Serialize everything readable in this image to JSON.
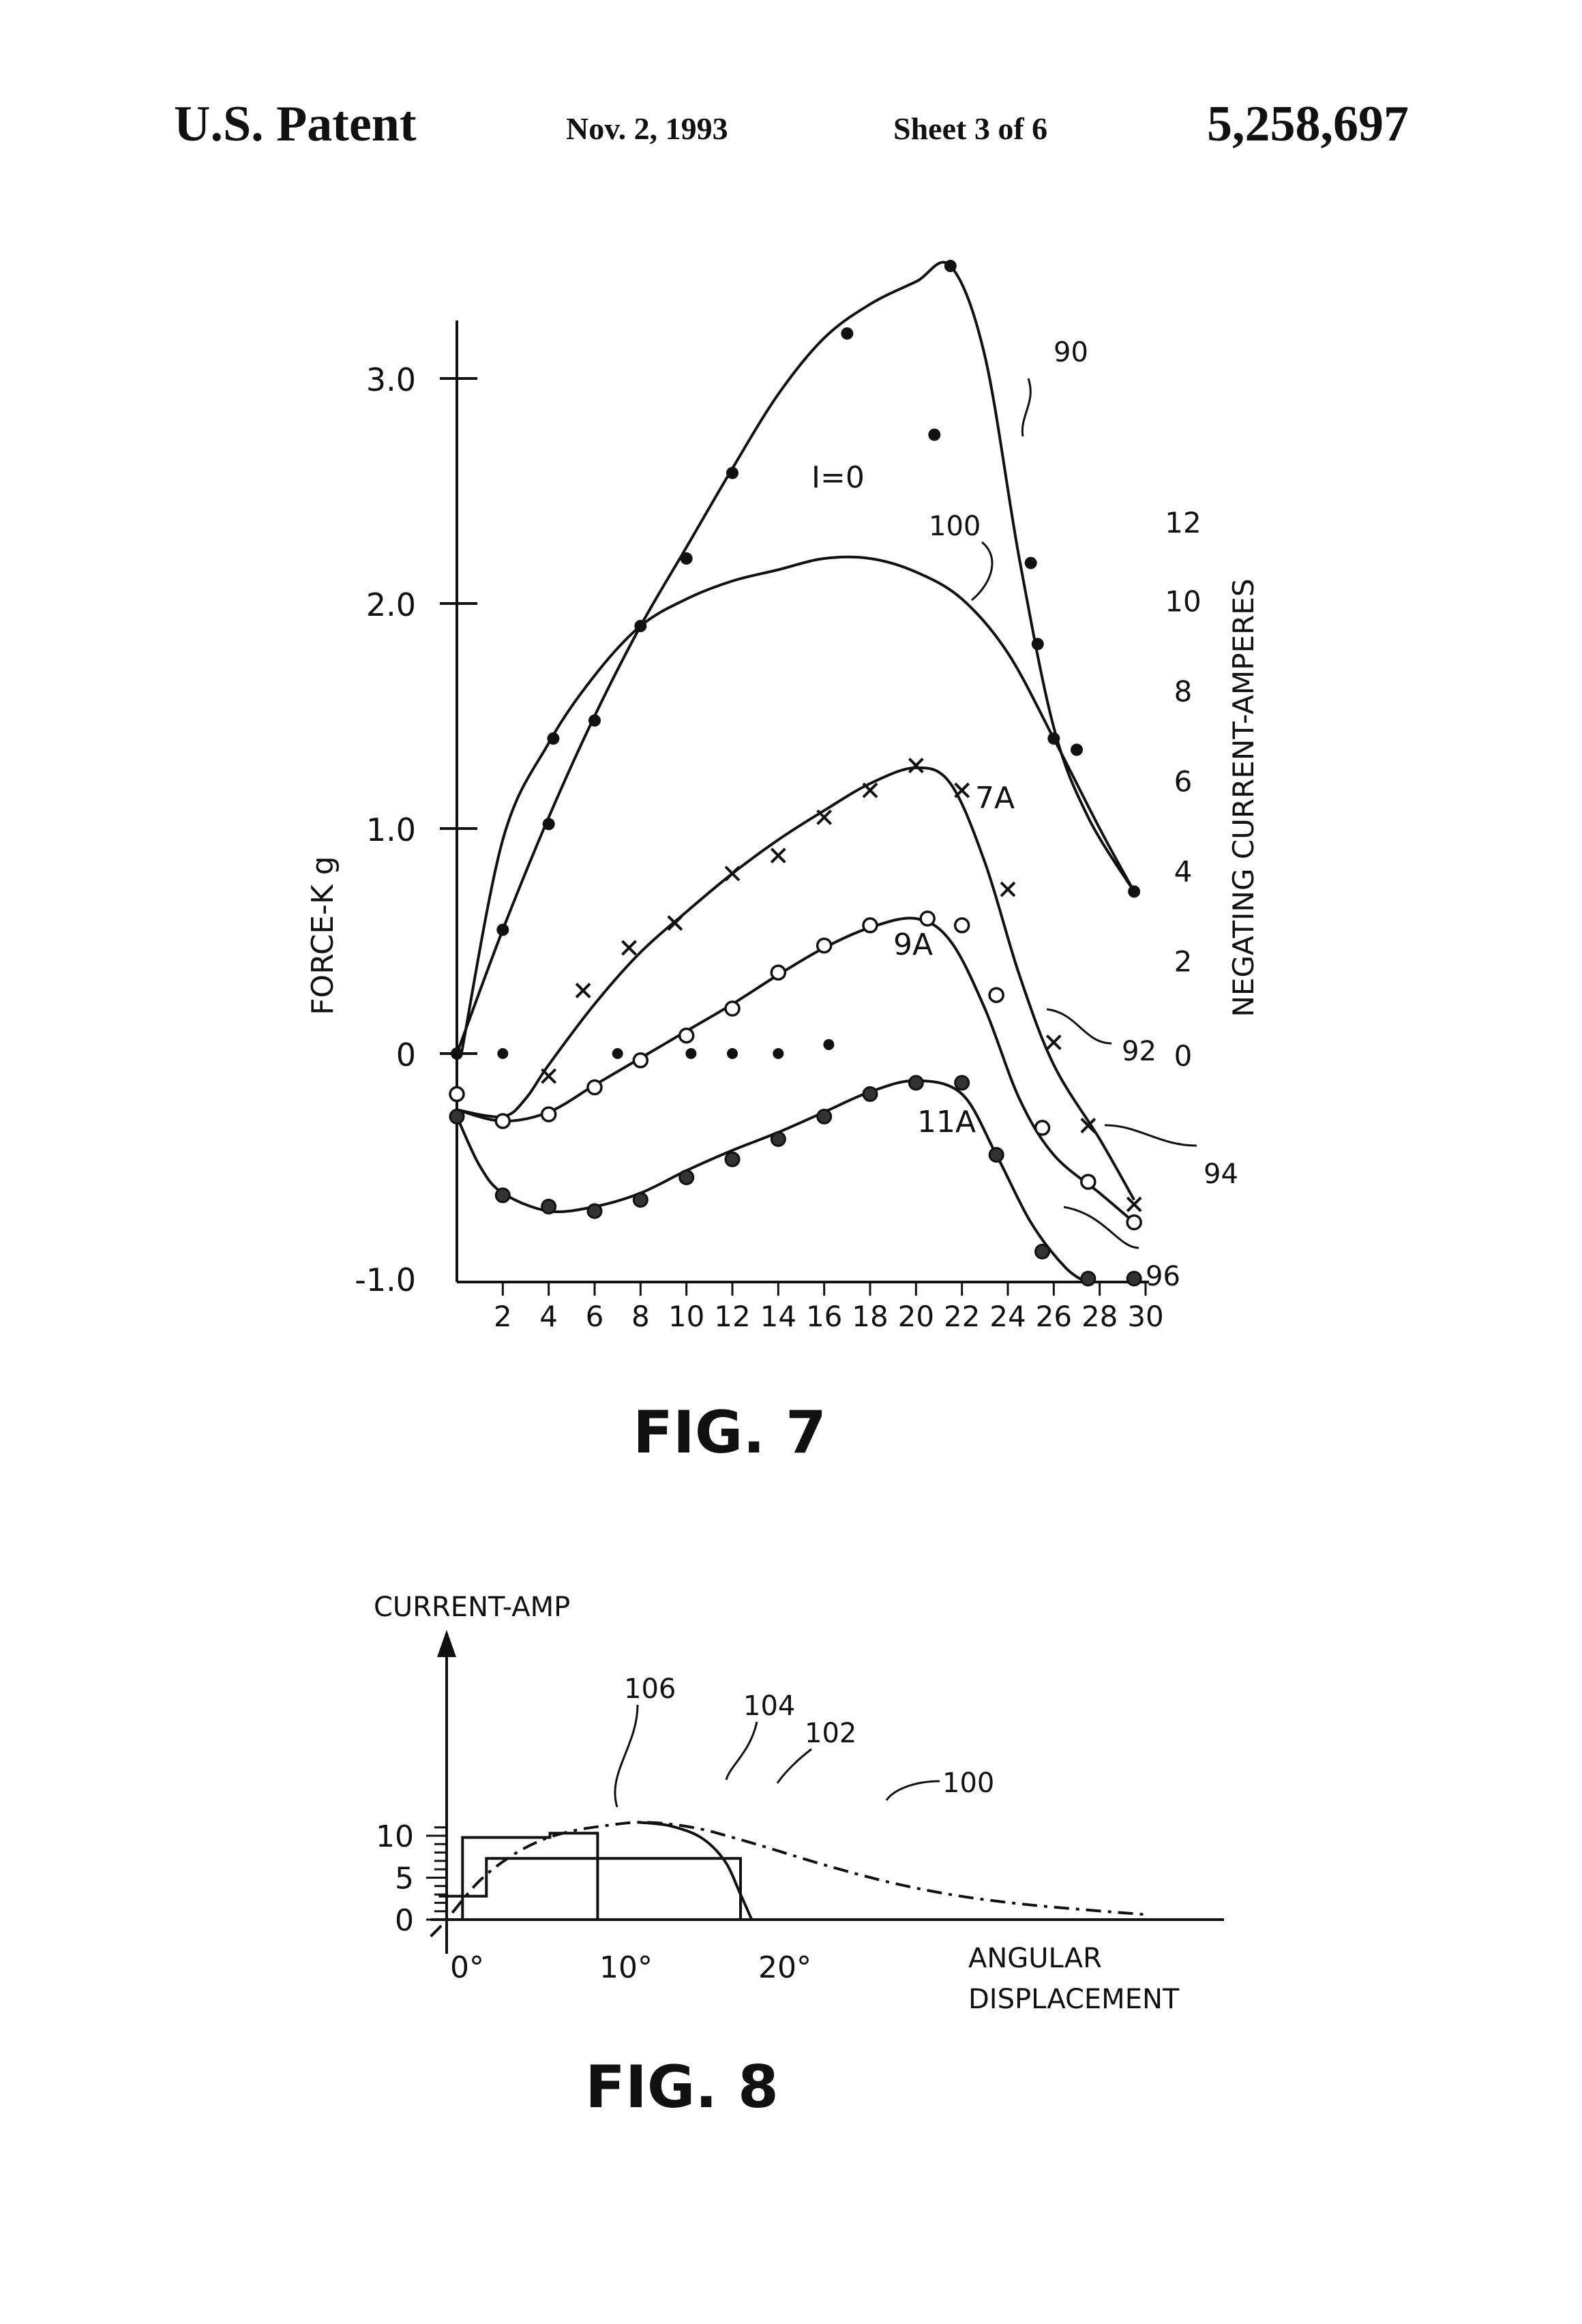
{
  "header": {
    "left": "U.S. Patent",
    "date": "Nov. 2, 1993",
    "sheet": "Sheet 3 of 6",
    "patent_number": "5,258,697"
  },
  "chart_data": [
    {
      "type": "line",
      "title": "FIG. 7",
      "ylabel": "FORCE-K g",
      "ylabel_right": "NEGATING CURRENT-AMPERES",
      "xlim": [
        0,
        30
      ],
      "ylim": [
        -1.0,
        3.5
      ],
      "x_ticks": [
        "2",
        "4",
        "6",
        "8",
        "10",
        "12",
        "14",
        "16",
        "18",
        "20",
        "22",
        "24",
        "26",
        "28",
        "30"
      ],
      "y_ticks": [
        "-1.0",
        "0",
        "1.0",
        "2.0",
        "3.0"
      ],
      "right_ticks": [
        "0",
        "2",
        "4",
        "6",
        "8",
        "10",
        "12"
      ],
      "right_tick_values": [
        0,
        2,
        4,
        6,
        8,
        10,
        12
      ],
      "right_lim": [
        0,
        12
      ],
      "right_tick_ylevels": [
        0.0,
        0.42,
        0.82,
        1.22,
        1.62,
        2.02,
        2.37
      ],
      "annotations": [
        "I=0",
        "100",
        "90",
        "7A",
        "9A",
        "11A",
        "92",
        "94",
        "96"
      ],
      "series": [
        {
          "name": "I=0",
          "marker": "dot",
          "label_ref": "90",
          "points": [
            [
              0,
              0
            ],
            [
              2,
              0.55
            ],
            [
              4,
              1.02
            ],
            [
              4.2,
              1.4
            ],
            [
              6,
              1.48
            ],
            [
              8,
              1.9
            ],
            [
              10,
              2.2
            ],
            [
              12,
              2.58
            ],
            [
              17,
              3.2
            ],
            [
              20.8,
              2.75
            ],
            [
              21.5,
              3.5
            ],
            [
              25,
              2.18
            ],
            [
              25.3,
              1.82
            ],
            [
              26,
              1.4
            ],
            [
              27,
              1.35
            ],
            [
              29.5,
              0.72
            ]
          ],
          "curve": [
            [
              0,
              0
            ],
            [
              2,
              0.55
            ],
            [
              4,
              1.05
            ],
            [
              6,
              1.5
            ],
            [
              8,
              1.9
            ],
            [
              10,
              2.25
            ],
            [
              12,
              2.6
            ],
            [
              14,
              2.93
            ],
            [
              16,
              3.18
            ],
            [
              18,
              3.33
            ],
            [
              20,
              3.43
            ],
            [
              21.5,
              3.5
            ],
            [
              23,
              3.1
            ],
            [
              24.5,
              2.2
            ],
            [
              26,
              1.45
            ],
            [
              27.5,
              1.05
            ],
            [
              29.5,
              0.72
            ]
          ]
        },
        {
          "name": "100",
          "marker": "none",
          "curve": [
            [
              0.2,
              0
            ],
            [
              2,
              0.95
            ],
            [
              4,
              1.38
            ],
            [
              6,
              1.68
            ],
            [
              8,
              1.9
            ],
            [
              10,
              2.02
            ],
            [
              12,
              2.1
            ],
            [
              14,
              2.15
            ],
            [
              16,
              2.2
            ],
            [
              18,
              2.2
            ],
            [
              20,
              2.14
            ],
            [
              22,
              2.02
            ],
            [
              24,
              1.78
            ],
            [
              26,
              1.4
            ],
            [
              28,
              1.0
            ],
            [
              29.5,
              0.72
            ]
          ]
        },
        {
          "name": "7A",
          "marker": "cross",
          "points": [
            [
              4,
              -0.1
            ],
            [
              5.5,
              0.28
            ],
            [
              7.5,
              0.47
            ],
            [
              9.5,
              0.58
            ],
            [
              12,
              0.8
            ],
            [
              14,
              0.88
            ],
            [
              16,
              1.05
            ],
            [
              18,
              1.17
            ],
            [
              20,
              1.28
            ],
            [
              22,
              1.17
            ],
            [
              24,
              0.73
            ],
            [
              26,
              0.05
            ],
            [
              27.5,
              -0.32
            ],
            [
              29.5,
              -0.67
            ]
          ],
          "curve": [
            [
              0,
              -0.25
            ],
            [
              2,
              -0.28
            ],
            [
              3,
              -0.2
            ],
            [
              4,
              -0.05
            ],
            [
              6,
              0.22
            ],
            [
              8,
              0.45
            ],
            [
              10,
              0.63
            ],
            [
              12,
              0.8
            ],
            [
              14,
              0.95
            ],
            [
              16,
              1.08
            ],
            [
              18,
              1.2
            ],
            [
              20,
              1.27
            ],
            [
              21.5,
              1.2
            ],
            [
              23,
              0.85
            ],
            [
              24.5,
              0.35
            ],
            [
              26,
              -0.05
            ],
            [
              28,
              -0.38
            ],
            [
              29.5,
              -0.65
            ]
          ]
        },
        {
          "name": "9A",
          "marker": "circle",
          "points": [
            [
              0,
              -0.18
            ],
            [
              2,
              -0.3
            ],
            [
              4,
              -0.27
            ],
            [
              6,
              -0.15
            ],
            [
              8,
              -0.03
            ],
            [
              10,
              0.08
            ],
            [
              12,
              0.2
            ],
            [
              14,
              0.36
            ],
            [
              16,
              0.48
            ],
            [
              18,
              0.57
            ],
            [
              20.5,
              0.6
            ],
            [
              22,
              0.57
            ],
            [
              23.5,
              0.26
            ],
            [
              25.5,
              -0.33
            ],
            [
              27.5,
              -0.57
            ],
            [
              29.5,
              -0.75
            ]
          ],
          "curve": [
            [
              0,
              -0.25
            ],
            [
              2,
              -0.3
            ],
            [
              4,
              -0.26
            ],
            [
              6,
              -0.14
            ],
            [
              8,
              -0.02
            ],
            [
              10,
              0.1
            ],
            [
              12,
              0.22
            ],
            [
              14,
              0.35
            ],
            [
              16,
              0.47
            ],
            [
              18,
              0.56
            ],
            [
              20,
              0.6
            ],
            [
              21.5,
              0.5
            ],
            [
              23,
              0.2
            ],
            [
              24.5,
              -0.2
            ],
            [
              26,
              -0.45
            ],
            [
              28,
              -0.62
            ],
            [
              29.5,
              -0.75
            ]
          ]
        },
        {
          "name": "11A",
          "marker": "dot-circle",
          "points": [
            [
              0,
              -0.28
            ],
            [
              2,
              -0.63
            ],
            [
              4,
              -0.68
            ],
            [
              6,
              -0.7
            ],
            [
              8,
              -0.65
            ],
            [
              10,
              -0.55
            ],
            [
              12,
              -0.47
            ],
            [
              14,
              -0.38
            ],
            [
              16,
              -0.28
            ],
            [
              18,
              -0.18
            ],
            [
              20,
              -0.13
            ],
            [
              22,
              -0.13
            ],
            [
              23.5,
              -0.45
            ],
            [
              25.5,
              -0.88
            ],
            [
              27.5,
              -1.0
            ],
            [
              29.5,
              -1.0
            ]
          ],
          "curve": [
            [
              0,
              -0.28
            ],
            [
              1,
              -0.5
            ],
            [
              2,
              -0.62
            ],
            [
              4,
              -0.7
            ],
            [
              6,
              -0.68
            ],
            [
              8,
              -0.62
            ],
            [
              10,
              -0.52
            ],
            [
              12,
              -0.43
            ],
            [
              14,
              -0.35
            ],
            [
              16,
              -0.26
            ],
            [
              18,
              -0.17
            ],
            [
              20,
              -0.12
            ],
            [
              22,
              -0.18
            ],
            [
              23.5,
              -0.45
            ],
            [
              25,
              -0.75
            ],
            [
              26.5,
              -0.95
            ],
            [
              27.5,
              -1.02
            ]
          ]
        }
      ],
      "isolated_points": [
        [
          2,
          0.0
        ],
        [
          7,
          0.0
        ],
        [
          10.2,
          -0.0
        ],
        [
          12,
          -0.0
        ],
        [
          14,
          0.0
        ],
        [
          16.2,
          0.04
        ]
      ]
    },
    {
      "type": "line",
      "title": "FIG. 8",
      "ylabel": "CURRENT-AMP",
      "xlabel": "ANGULAR DISPLACEMENT",
      "xlim": [
        -1,
        48
      ],
      "ylim": [
        -2,
        14
      ],
      "y_ticks": [
        "0",
        "5",
        "10"
      ],
      "x_ticks": [
        "0°",
        "10°",
        "20°"
      ],
      "annotations": [
        "106",
        "104",
        "102",
        "100"
      ],
      "series": [
        {
          "name": "100",
          "style": "dash-dot",
          "points": [
            [
              -1,
              -2
            ],
            [
              0,
              0
            ],
            [
              2,
              4.5
            ],
            [
              4,
              7.5
            ],
            [
              6,
              9.5
            ],
            [
              8,
              10.6
            ],
            [
              10,
              11.2
            ],
            [
              12,
              11.6
            ],
            [
              14,
              11.4
            ],
            [
              16,
              10.8
            ],
            [
              18,
              9.8
            ],
            [
              20,
              8.7
            ],
            [
              24,
              6.4
            ],
            [
              28,
              4.4
            ],
            [
              32,
              2.9
            ],
            [
              36,
              1.9
            ],
            [
              40,
              1.2
            ],
            [
              44,
              0.6
            ]
          ]
        },
        {
          "name": "102",
          "style": "solid",
          "points": [
            [
              12,
              11.6
            ],
            [
              14,
              11.2
            ],
            [
              16,
              9.8
            ],
            [
              17.5,
              7.0
            ],
            [
              18.5,
              3.0
            ],
            [
              19.2,
              0
            ]
          ]
        },
        {
          "name": "104",
          "style": "step",
          "points": [
            [
              -0.5,
              2.8
            ],
            [
              2.5,
              2.8
            ],
            [
              2.5,
              7.3
            ],
            [
              15.5,
              7.3
            ],
            [
              15.5,
              7.3
            ],
            [
              18.5,
              7.3
            ],
            [
              18.5,
              0
            ]
          ]
        },
        {
          "name": "106",
          "style": "step",
          "points": [
            [
              1,
              0
            ],
            [
              1,
              9.8
            ],
            [
              6.5,
              9.8
            ],
            [
              6.5,
              10.3
            ],
            [
              9.5,
              10.3
            ],
            [
              9.5,
              0
            ]
          ]
        }
      ]
    }
  ]
}
